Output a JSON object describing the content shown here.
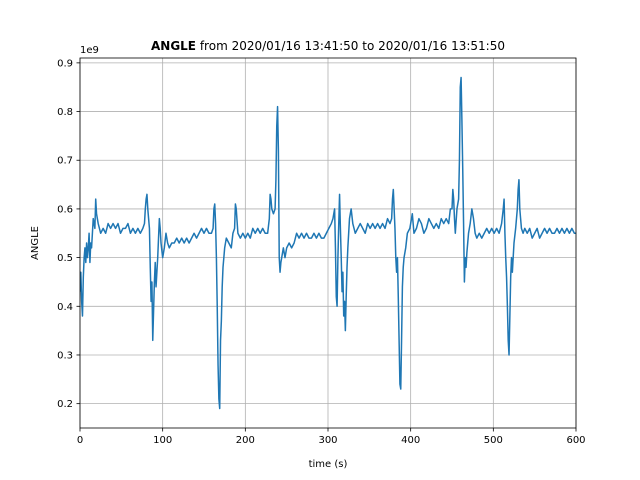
{
  "chart_data": {
    "type": "line",
    "title": {
      "bold": "ANGLE",
      "rest": " from 2020/01/16 13:41:50 to 2020/01/16 13:51:50"
    },
    "offset_label": "1e9",
    "xlabel": "time (s)",
    "ylabel": "ANGLE",
    "xlim": [
      0,
      600
    ],
    "ylim": [
      0.15,
      0.91
    ],
    "xticks": [
      0,
      100,
      200,
      300,
      400,
      500,
      600
    ],
    "yticks": [
      0.2,
      0.3,
      0.4,
      0.5,
      0.6,
      0.7,
      0.8,
      0.9
    ],
    "grid": true,
    "series_color": "#1f77b4",
    "series": [
      {
        "points": [
          [
            0,
            0.43
          ],
          [
            1,
            0.47
          ],
          [
            2,
            0.41
          ],
          [
            3,
            0.38
          ],
          [
            4,
            0.46
          ],
          [
            5,
            0.5
          ],
          [
            6,
            0.52
          ],
          [
            7,
            0.49
          ],
          [
            8,
            0.53
          ],
          [
            9,
            0.5
          ],
          [
            10,
            0.52
          ],
          [
            11,
            0.55
          ],
          [
            12,
            0.49
          ],
          [
            13,
            0.53
          ],
          [
            14,
            0.52
          ],
          [
            16,
            0.58
          ],
          [
            18,
            0.56
          ],
          [
            19,
            0.62
          ],
          [
            20,
            0.59
          ],
          [
            22,
            0.57
          ],
          [
            25,
            0.55
          ],
          [
            28,
            0.56
          ],
          [
            31,
            0.55
          ],
          [
            34,
            0.57
          ],
          [
            37,
            0.56
          ],
          [
            40,
            0.57
          ],
          [
            43,
            0.56
          ],
          [
            46,
            0.57
          ],
          [
            49,
            0.55
          ],
          [
            52,
            0.56
          ],
          [
            55,
            0.56
          ],
          [
            58,
            0.57
          ],
          [
            61,
            0.55
          ],
          [
            64,
            0.56
          ],
          [
            67,
            0.55
          ],
          [
            70,
            0.56
          ],
          [
            73,
            0.55
          ],
          [
            76,
            0.56
          ],
          [
            78,
            0.57
          ],
          [
            79,
            0.6
          ],
          [
            80,
            0.62
          ],
          [
            81,
            0.63
          ],
          [
            82,
            0.6
          ],
          [
            83,
            0.58
          ],
          [
            84,
            0.56
          ],
          [
            85,
            0.48
          ],
          [
            86,
            0.41
          ],
          [
            87,
            0.45
          ],
          [
            88,
            0.33
          ],
          [
            89,
            0.39
          ],
          [
            90,
            0.45
          ],
          [
            91,
            0.49
          ],
          [
            92,
            0.44
          ],
          [
            93,
            0.47
          ],
          [
            94,
            0.5
          ],
          [
            95,
            0.54
          ],
          [
            96,
            0.58
          ],
          [
            97,
            0.56
          ],
          [
            98,
            0.53
          ],
          [
            100,
            0.5
          ],
          [
            102,
            0.52
          ],
          [
            104,
            0.55
          ],
          [
            106,
            0.53
          ],
          [
            108,
            0.52
          ],
          [
            111,
            0.53
          ],
          [
            114,
            0.53
          ],
          [
            117,
            0.54
          ],
          [
            120,
            0.53
          ],
          [
            123,
            0.54
          ],
          [
            126,
            0.53
          ],
          [
            129,
            0.54
          ],
          [
            132,
            0.53
          ],
          [
            135,
            0.54
          ],
          [
            138,
            0.55
          ],
          [
            141,
            0.54
          ],
          [
            144,
            0.55
          ],
          [
            147,
            0.56
          ],
          [
            150,
            0.55
          ],
          [
            153,
            0.56
          ],
          [
            156,
            0.55
          ],
          [
            159,
            0.55
          ],
          [
            161,
            0.56
          ],
          [
            162,
            0.6
          ],
          [
            163,
            0.61
          ],
          [
            164,
            0.57
          ],
          [
            165,
            0.5
          ],
          [
            166,
            0.4
          ],
          [
            167,
            0.28
          ],
          [
            168,
            0.21
          ],
          [
            169,
            0.19
          ],
          [
            170,
            0.33
          ],
          [
            171,
            0.37
          ],
          [
            172,
            0.44
          ],
          [
            173,
            0.48
          ],
          [
            175,
            0.52
          ],
          [
            177,
            0.54
          ],
          [
            180,
            0.53
          ],
          [
            183,
            0.52
          ],
          [
            185,
            0.55
          ],
          [
            187,
            0.56
          ],
          [
            188,
            0.61
          ],
          [
            189,
            0.6
          ],
          [
            191,
            0.55
          ],
          [
            194,
            0.54
          ],
          [
            197,
            0.55
          ],
          [
            200,
            0.54
          ],
          [
            203,
            0.55
          ],
          [
            206,
            0.54
          ],
          [
            209,
            0.56
          ],
          [
            212,
            0.55
          ],
          [
            215,
            0.56
          ],
          [
            218,
            0.55
          ],
          [
            221,
            0.56
          ],
          [
            224,
            0.55
          ],
          [
            227,
            0.55
          ],
          [
            229,
            0.58
          ],
          [
            230,
            0.63
          ],
          [
            231,
            0.62
          ],
          [
            232,
            0.6
          ],
          [
            234,
            0.59
          ],
          [
            236,
            0.6
          ],
          [
            237,
            0.66
          ],
          [
            238,
            0.77
          ],
          [
            239,
            0.81
          ],
          [
            240,
            0.72
          ],
          [
            241,
            0.5
          ],
          [
            242,
            0.47
          ],
          [
            243,
            0.49
          ],
          [
            244,
            0.5
          ],
          [
            246,
            0.52
          ],
          [
            248,
            0.5
          ],
          [
            250,
            0.52
          ],
          [
            253,
            0.53
          ],
          [
            256,
            0.52
          ],
          [
            259,
            0.53
          ],
          [
            262,
            0.55
          ],
          [
            265,
            0.54
          ],
          [
            268,
            0.55
          ],
          [
            271,
            0.54
          ],
          [
            274,
            0.55
          ],
          [
            277,
            0.54
          ],
          [
            280,
            0.54
          ],
          [
            283,
            0.55
          ],
          [
            286,
            0.54
          ],
          [
            289,
            0.55
          ],
          [
            292,
            0.54
          ],
          [
            295,
            0.54
          ],
          [
            298,
            0.55
          ],
          [
            301,
            0.56
          ],
          [
            304,
            0.57
          ],
          [
            306,
            0.58
          ],
          [
            308,
            0.6
          ],
          [
            309,
            0.52
          ],
          [
            310,
            0.42
          ],
          [
            311,
            0.4
          ],
          [
            312,
            0.5
          ],
          [
            313,
            0.57
          ],
          [
            314,
            0.63
          ],
          [
            315,
            0.56
          ],
          [
            316,
            0.5
          ],
          [
            317,
            0.43
          ],
          [
            318,
            0.47
          ],
          [
            319,
            0.38
          ],
          [
            320,
            0.41
          ],
          [
            321,
            0.35
          ],
          [
            322,
            0.42
          ],
          [
            323,
            0.48
          ],
          [
            324,
            0.52
          ],
          [
            326,
            0.58
          ],
          [
            328,
            0.6
          ],
          [
            330,
            0.57
          ],
          [
            333,
            0.55
          ],
          [
            336,
            0.56
          ],
          [
            339,
            0.57
          ],
          [
            342,
            0.56
          ],
          [
            345,
            0.55
          ],
          [
            348,
            0.57
          ],
          [
            351,
            0.56
          ],
          [
            354,
            0.57
          ],
          [
            357,
            0.56
          ],
          [
            360,
            0.57
          ],
          [
            363,
            0.56
          ],
          [
            366,
            0.57
          ],
          [
            369,
            0.56
          ],
          [
            372,
            0.58
          ],
          [
            375,
            0.57
          ],
          [
            377,
            0.58
          ],
          [
            378,
            0.62
          ],
          [
            379,
            0.64
          ],
          [
            380,
            0.6
          ],
          [
            381,
            0.56
          ],
          [
            382,
            0.5
          ],
          [
            383,
            0.47
          ],
          [
            384,
            0.5
          ],
          [
            385,
            0.42
          ],
          [
            386,
            0.33
          ],
          [
            387,
            0.24
          ],
          [
            388,
            0.23
          ],
          [
            389,
            0.33
          ],
          [
            390,
            0.44
          ],
          [
            391,
            0.48
          ],
          [
            392,
            0.5
          ],
          [
            394,
            0.52
          ],
          [
            396,
            0.55
          ],
          [
            399,
            0.56
          ],
          [
            402,
            0.59
          ],
          [
            404,
            0.55
          ],
          [
            407,
            0.56
          ],
          [
            410,
            0.58
          ],
          [
            413,
            0.57
          ],
          [
            416,
            0.55
          ],
          [
            419,
            0.56
          ],
          [
            422,
            0.58
          ],
          [
            425,
            0.57
          ],
          [
            428,
            0.56
          ],
          [
            431,
            0.57
          ],
          [
            434,
            0.56
          ],
          [
            437,
            0.58
          ],
          [
            440,
            0.57
          ],
          [
            443,
            0.58
          ],
          [
            446,
            0.57
          ],
          [
            448,
            0.6
          ],
          [
            450,
            0.6
          ],
          [
            451,
            0.64
          ],
          [
            452,
            0.62
          ],
          [
            453,
            0.58
          ],
          [
            454,
            0.55
          ],
          [
            456,
            0.6
          ],
          [
            458,
            0.62
          ],
          [
            459,
            0.7
          ],
          [
            460,
            0.85
          ],
          [
            461,
            0.87
          ],
          [
            462,
            0.78
          ],
          [
            463,
            0.68
          ],
          [
            464,
            0.57
          ],
          [
            465,
            0.45
          ],
          [
            466,
            0.5
          ],
          [
            467,
            0.48
          ],
          [
            468,
            0.51
          ],
          [
            470,
            0.55
          ],
          [
            472,
            0.57
          ],
          [
            474,
            0.6
          ],
          [
            476,
            0.58
          ],
          [
            478,
            0.55
          ],
          [
            480,
            0.54
          ],
          [
            483,
            0.55
          ],
          [
            486,
            0.54
          ],
          [
            489,
            0.55
          ],
          [
            492,
            0.56
          ],
          [
            495,
            0.55
          ],
          [
            498,
            0.56
          ],
          [
            501,
            0.55
          ],
          [
            504,
            0.56
          ],
          [
            507,
            0.55
          ],
          [
            510,
            0.57
          ],
          [
            512,
            0.6
          ],
          [
            513,
            0.62
          ],
          [
            514,
            0.55
          ],
          [
            515,
            0.5
          ],
          [
            516,
            0.46
          ],
          [
            517,
            0.4
          ],
          [
            518,
            0.33
          ],
          [
            519,
            0.3
          ],
          [
            520,
            0.38
          ],
          [
            521,
            0.46
          ],
          [
            522,
            0.5
          ],
          [
            523,
            0.47
          ],
          [
            524,
            0.5
          ],
          [
            525,
            0.53
          ],
          [
            527,
            0.56
          ],
          [
            529,
            0.6
          ],
          [
            530,
            0.64
          ],
          [
            531,
            0.66
          ],
          [
            532,
            0.6
          ],
          [
            533,
            0.58
          ],
          [
            534,
            0.56
          ],
          [
            536,
            0.55
          ],
          [
            538,
            0.56
          ],
          [
            541,
            0.55
          ],
          [
            544,
            0.56
          ],
          [
            547,
            0.54
          ],
          [
            550,
            0.55
          ],
          [
            553,
            0.56
          ],
          [
            556,
            0.54
          ],
          [
            559,
            0.55
          ],
          [
            562,
            0.56
          ],
          [
            565,
            0.55
          ],
          [
            568,
            0.56
          ],
          [
            571,
            0.55
          ],
          [
            574,
            0.55
          ],
          [
            577,
            0.56
          ],
          [
            580,
            0.55
          ],
          [
            583,
            0.56
          ],
          [
            586,
            0.55
          ],
          [
            589,
            0.56
          ],
          [
            592,
            0.55
          ],
          [
            595,
            0.56
          ],
          [
            598,
            0.55
          ],
          [
            600,
            0.55
          ]
        ]
      }
    ]
  }
}
